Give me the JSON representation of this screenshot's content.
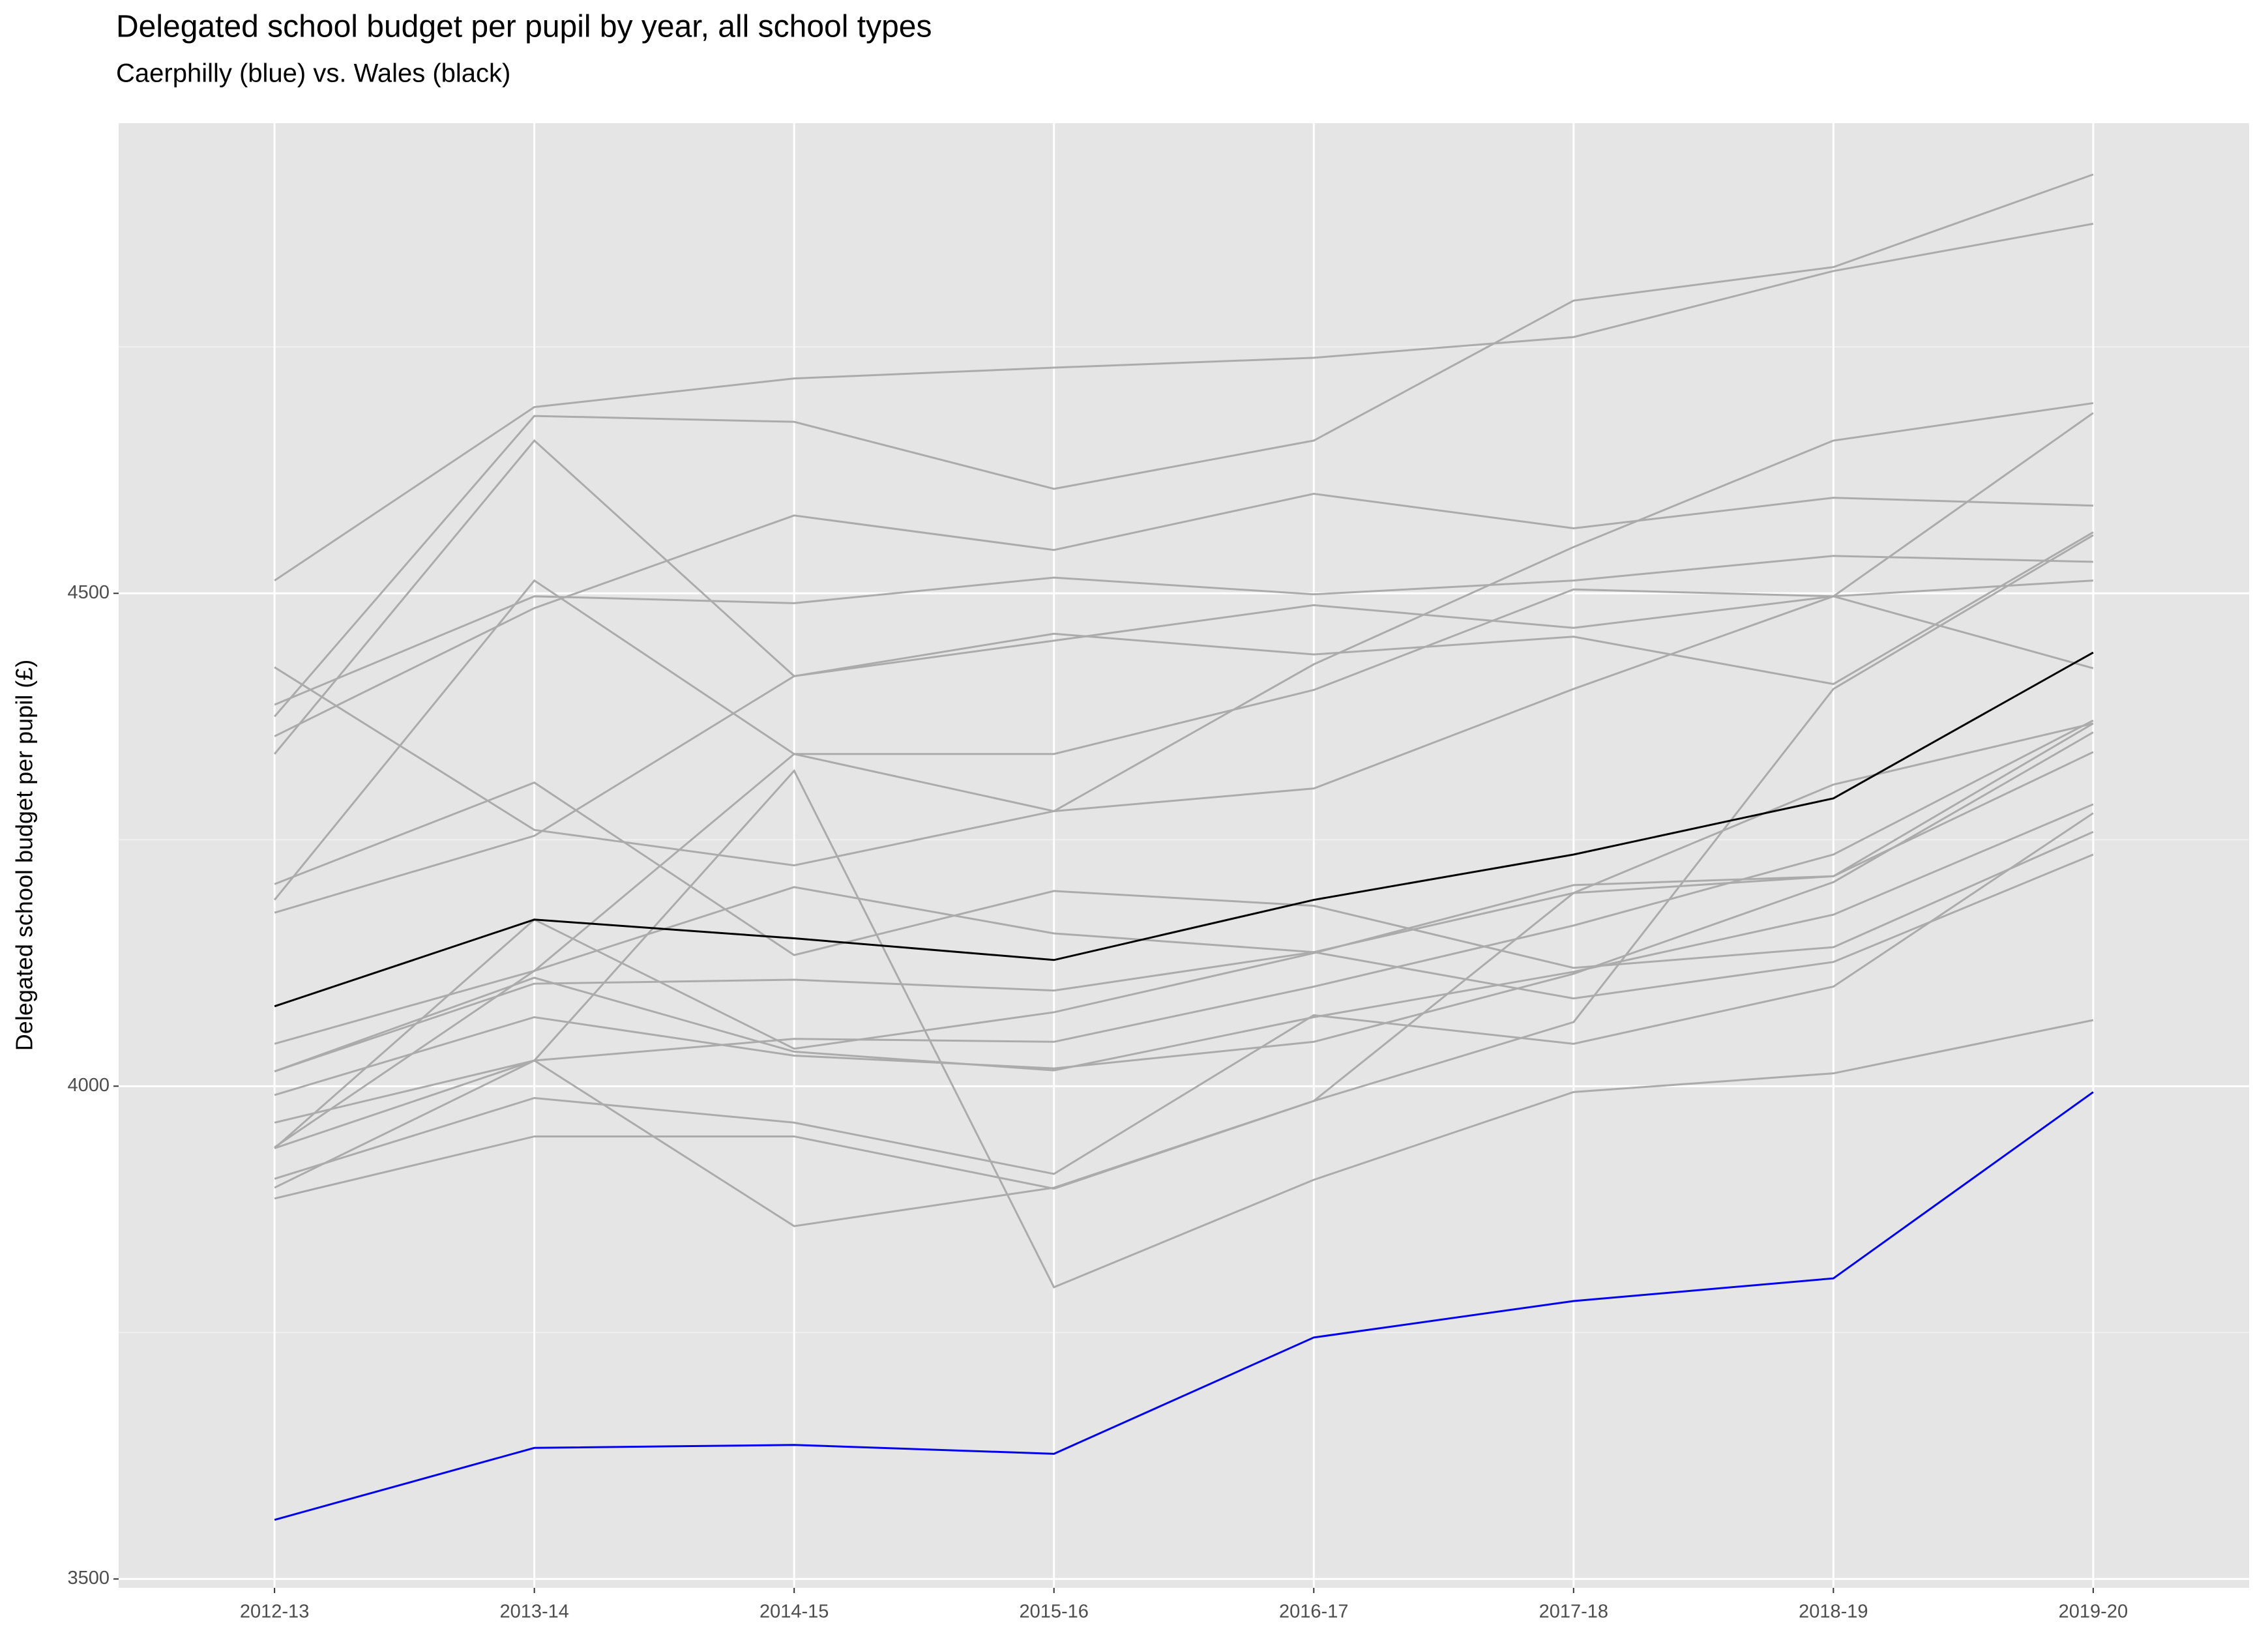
{
  "chart_data": {
    "type": "line",
    "title": "Delegated school budget per pupil by year, all school types",
    "subtitle": "Caerphilly (blue) vs. Wales (black)",
    "y_label": "Delegated school budget per pupil (£)",
    "categories": [
      "2012-13",
      "2013-14",
      "2014-15",
      "2015-16",
      "2016-17",
      "2017-18",
      "2018-19",
      "2019-20"
    ],
    "ylim": [
      3491,
      4977
    ],
    "yticks": [
      3500,
      4000,
      4500
    ],
    "minor_yticks": [
      3750,
      4250,
      4750
    ],
    "grid": true,
    "series": [
      {
        "color": "#ababab",
        "values": [
          4513,
          4689,
          4718,
          4729,
          4739,
          4760,
          4827,
          4875
        ]
      },
      {
        "color": "#ababab",
        "values": [
          4375,
          4680,
          4674,
          4606,
          4655,
          4797,
          4831,
          4925
        ]
      },
      {
        "color": "#ababab",
        "values": [
          4337,
          4655,
          4416,
          4459,
          4438,
          4456,
          4408,
          4562
        ]
      },
      {
        "color": "#ababab",
        "values": [
          4387,
          4497,
          4490,
          4516,
          4499,
          4513,
          4538,
          4532
        ]
      },
      {
        "color": "#ababab",
        "values": [
          4355,
          4485,
          4579,
          4544,
          4601,
          4566,
          4597,
          4589
        ]
      },
      {
        "color": "#ababab",
        "values": [
          4425,
          4260,
          4224,
          4279,
          4302,
          4403,
          4497,
          4424
        ]
      },
      {
        "color": "#ababab",
        "values": [
          4205,
          4308,
          4133,
          4198,
          4183,
          4120,
          4141,
          4258
        ]
      },
      {
        "color": "#ababab",
        "values": [
          4189,
          4513,
          4337,
          4337,
          4402,
          4504,
          4497,
          4683
        ]
      },
      {
        "color": "#ababab",
        "values": [
          4176,
          4254,
          4416,
          4452,
          4488,
          4465,
          4497,
          4513
        ]
      },
      {
        "color": "#ababab",
        "values": [
          4043,
          4117,
          4202,
          4155,
          4136,
          4089,
          4126,
          4235
        ]
      },
      {
        "color": "#ababab",
        "values": [
          4015,
          4104,
          4108,
          4097,
          4136,
          4196,
          4213,
          4339
        ]
      },
      {
        "color": "#ababab",
        "values": [
          4015,
          4110,
          4035,
          4016,
          4070,
          4116,
          4174,
          4286
        ]
      },
      {
        "color": "#ababab",
        "values": [
          3991,
          4070,
          4031,
          4018,
          4045,
          4114,
          4207,
          4359
        ]
      },
      {
        "color": "#ababab",
        "values": [
          3963,
          4026,
          4048,
          4045,
          4101,
          4163,
          4235,
          4371
        ]
      },
      {
        "color": "#ababab",
        "values": [
          3938,
          4117,
          4337,
          4279,
          4428,
          4547,
          4655,
          4693
        ]
      },
      {
        "color": "#ababab",
        "values": [
          3937,
          4169,
          4038,
          4075,
          4135,
          4204,
          4213,
          4368
        ]
      },
      {
        "color": "#ababab",
        "values": [
          3906,
          3988,
          3963,
          3911,
          4072,
          4043,
          4101,
          4277
        ]
      },
      {
        "color": "#ababab",
        "values": [
          3897,
          4026,
          3858,
          3897,
          3985,
          4065,
          4403,
          4559
        ]
      },
      {
        "color": "#ababab",
        "values": [
          3886,
          3949,
          3949,
          3896,
          3985,
          4196,
          4306,
          4368
        ]
      },
      {
        "color": "#ababab",
        "values": [
          3937,
          4026,
          4320,
          3796,
          3905,
          3994,
          4013,
          4067
        ]
      },
      {
        "color": "#000000",
        "values": [
          4081,
          4169,
          4150,
          4128,
          4189,
          4235,
          4292,
          4440
        ]
      },
      {
        "color": "#0000ee",
        "values": [
          3560,
          3633,
          3636,
          3627,
          3745,
          3782,
          3805,
          3994
        ]
      }
    ]
  }
}
